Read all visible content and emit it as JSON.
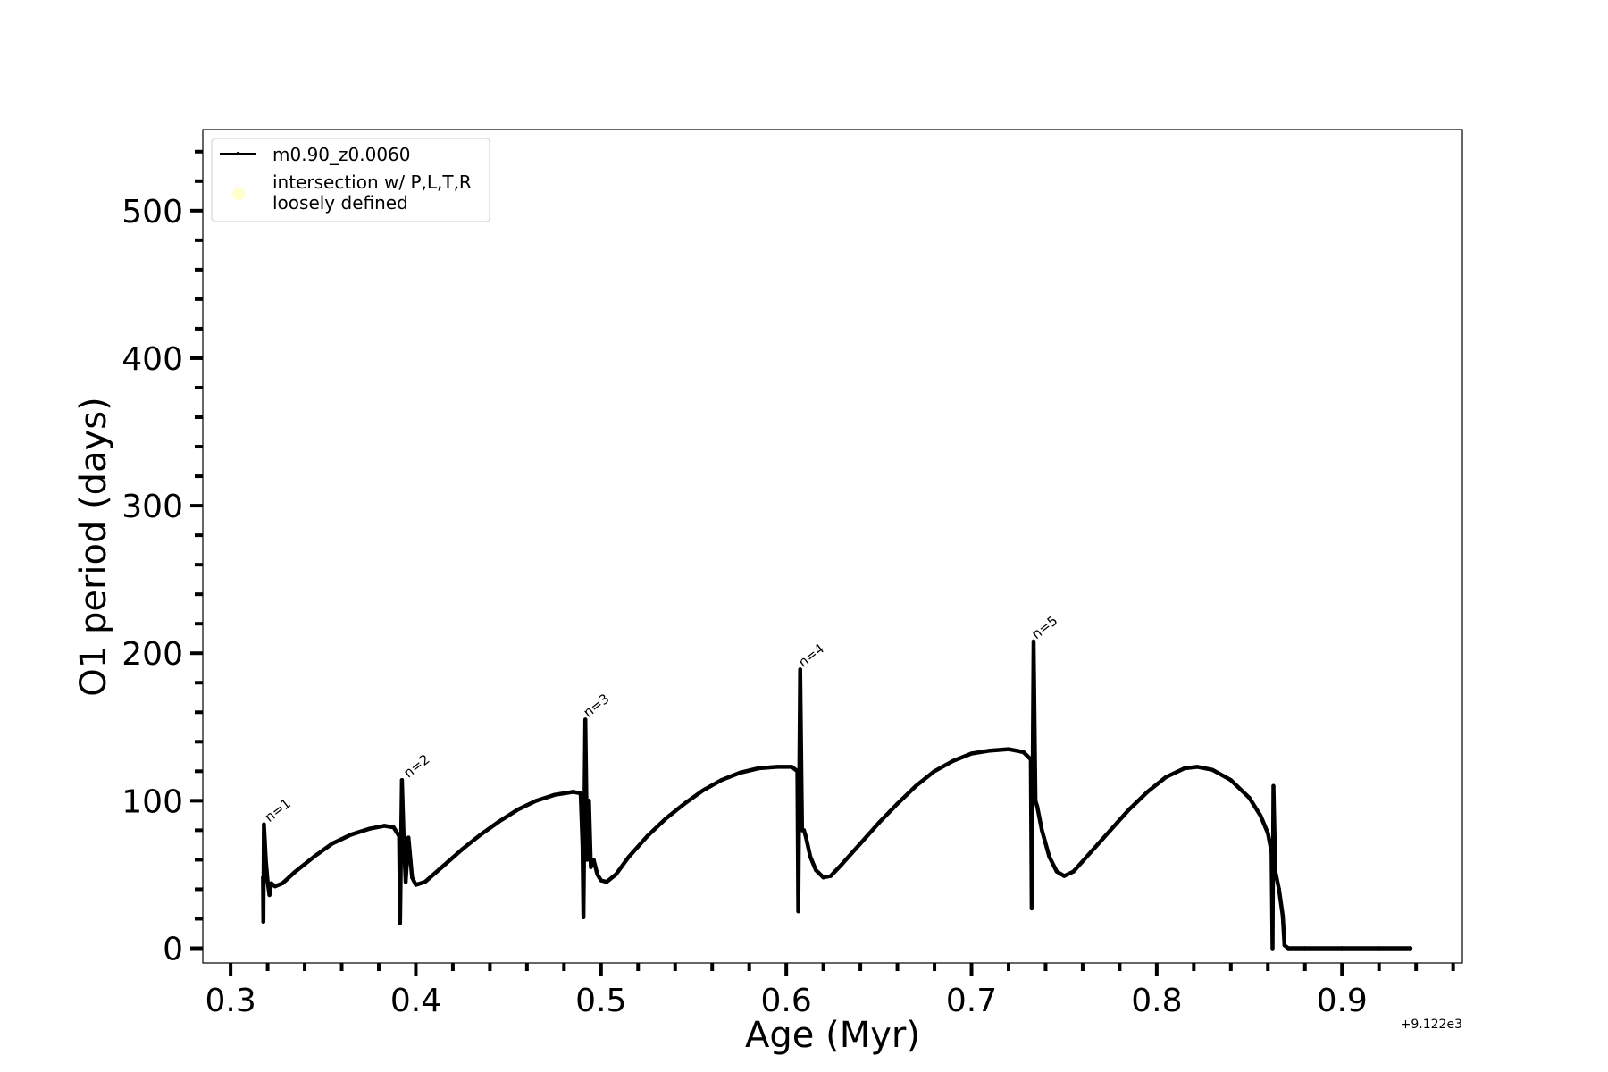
{
  "chart_data": {
    "type": "line",
    "xlabel": "Age (Myr)",
    "ylabel": "O1 period (days)",
    "x_offset_label": "+9.122e3",
    "xlim": [
      0.285,
      0.965
    ],
    "ylim": [
      -10,
      555
    ],
    "x_ticks": [
      0.3,
      0.4,
      0.5,
      0.6,
      0.7,
      0.8,
      0.9
    ],
    "x_tick_labels": [
      "0.3",
      "0.4",
      "0.5",
      "0.6",
      "0.7",
      "0.8",
      "0.9"
    ],
    "x_minor_step": 0.02,
    "y_ticks": [
      0,
      100,
      200,
      300,
      400,
      500
    ],
    "y_tick_labels": [
      "0",
      "100",
      "200",
      "300",
      "400",
      "500"
    ],
    "y_minor_step": 20,
    "grid": false,
    "legend_position": "top-left",
    "legend": [
      {
        "label": "m0.90_z0.0060",
        "kind": "line-marker",
        "color": "#000000"
      },
      {
        "label_lines": [
          "intersection w/ P,L,T,R",
          "loosely defined"
        ],
        "kind": "dot",
        "color": "#ffffcc"
      }
    ],
    "annotations": [
      {
        "text": "n=1",
        "x": 0.3195,
        "y": 84
      },
      {
        "text": "n=2",
        "x": 0.3945,
        "y": 114
      },
      {
        "text": "n=3",
        "x": 0.4915,
        "y": 155
      },
      {
        "text": "n=4",
        "x": 0.6075,
        "y": 189
      },
      {
        "text": "n=5",
        "x": 0.7335,
        "y": 208
      }
    ],
    "series": [
      {
        "name": "m0.90_z0.0060",
        "color": "#000000",
        "points": [
          [
            0.3175,
            48
          ],
          [
            0.3177,
            18
          ],
          [
            0.318,
            84
          ],
          [
            0.3185,
            72
          ],
          [
            0.319,
            60
          ],
          [
            0.32,
            45
          ],
          [
            0.321,
            36
          ],
          [
            0.322,
            44
          ],
          [
            0.324,
            42
          ],
          [
            0.328,
            44
          ],
          [
            0.335,
            52
          ],
          [
            0.345,
            62
          ],
          [
            0.355,
            71
          ],
          [
            0.365,
            77
          ],
          [
            0.375,
            81
          ],
          [
            0.383,
            83
          ],
          [
            0.388,
            82
          ],
          [
            0.391,
            76
          ],
          [
            0.3915,
            17
          ],
          [
            0.3925,
            114
          ],
          [
            0.3935,
            72
          ],
          [
            0.3945,
            45
          ],
          [
            0.396,
            75
          ],
          [
            0.398,
            48
          ],
          [
            0.4,
            43
          ],
          [
            0.405,
            45
          ],
          [
            0.415,
            56
          ],
          [
            0.425,
            67
          ],
          [
            0.435,
            77
          ],
          [
            0.445,
            86
          ],
          [
            0.455,
            94
          ],
          [
            0.465,
            100
          ],
          [
            0.475,
            104
          ],
          [
            0.485,
            106
          ],
          [
            0.489,
            105
          ],
          [
            0.49,
            70
          ],
          [
            0.4905,
            21
          ],
          [
            0.4915,
            155
          ],
          [
            0.4925,
            60
          ],
          [
            0.4935,
            100
          ],
          [
            0.4945,
            55
          ],
          [
            0.496,
            60
          ],
          [
            0.498,
            50
          ],
          [
            0.5,
            46
          ],
          [
            0.503,
            45
          ],
          [
            0.508,
            50
          ],
          [
            0.515,
            62
          ],
          [
            0.525,
            76
          ],
          [
            0.535,
            88
          ],
          [
            0.545,
            98
          ],
          [
            0.555,
            107
          ],
          [
            0.565,
            114
          ],
          [
            0.575,
            119
          ],
          [
            0.585,
            122
          ],
          [
            0.595,
            123
          ],
          [
            0.603,
            123
          ],
          [
            0.606,
            120
          ],
          [
            0.6065,
            25
          ],
          [
            0.6075,
            189
          ],
          [
            0.6085,
            80
          ],
          [
            0.6095,
            80
          ],
          [
            0.6105,
            76
          ],
          [
            0.613,
            62
          ],
          [
            0.616,
            53
          ],
          [
            0.62,
            48
          ],
          [
            0.624,
            49
          ],
          [
            0.63,
            57
          ],
          [
            0.64,
            71
          ],
          [
            0.65,
            85
          ],
          [
            0.66,
            98
          ],
          [
            0.67,
            110
          ],
          [
            0.68,
            120
          ],
          [
            0.69,
            127
          ],
          [
            0.7,
            132
          ],
          [
            0.71,
            134
          ],
          [
            0.72,
            135
          ],
          [
            0.728,
            133
          ],
          [
            0.732,
            128
          ],
          [
            0.7325,
            27
          ],
          [
            0.7335,
            208
          ],
          [
            0.7345,
            100
          ],
          [
            0.7355,
            96
          ],
          [
            0.738,
            80
          ],
          [
            0.742,
            62
          ],
          [
            0.746,
            52
          ],
          [
            0.75,
            49
          ],
          [
            0.755,
            52
          ],
          [
            0.765,
            66
          ],
          [
            0.775,
            80
          ],
          [
            0.785,
            94
          ],
          [
            0.795,
            106
          ],
          [
            0.805,
            116
          ],
          [
            0.815,
            122
          ],
          [
            0.822,
            123
          ],
          [
            0.83,
            121
          ],
          [
            0.84,
            114
          ],
          [
            0.85,
            102
          ],
          [
            0.856,
            90
          ],
          [
            0.86,
            78
          ],
          [
            0.862,
            65
          ],
          [
            0.8625,
            0
          ],
          [
            0.863,
            110
          ],
          [
            0.864,
            52
          ],
          [
            0.866,
            40
          ],
          [
            0.868,
            22
          ],
          [
            0.869,
            2
          ],
          [
            0.871,
            0
          ],
          [
            0.88,
            0
          ],
          [
            0.9,
            0
          ],
          [
            0.92,
            0
          ],
          [
            0.937,
            0
          ]
        ]
      }
    ]
  }
}
